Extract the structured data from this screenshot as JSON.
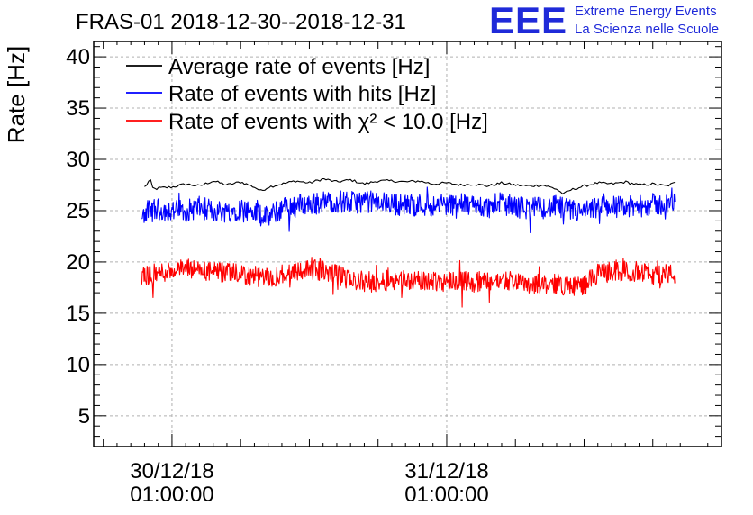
{
  "logo": {
    "mark": "EEE",
    "line1": "Extreme Energy Events",
    "line2": "La Scienza nelle Scuole",
    "color": "#1f2ad9"
  },
  "chart_data": {
    "type": "line",
    "title": "FRAS-01 2018-12-30--2018-12-31",
    "xlabel": "",
    "ylabel": "Rate [Hz]",
    "ylim": [
      2,
      41.5
    ],
    "xlim_hours": [
      -5.7,
      40.0
    ],
    "yticks": [
      5,
      10,
      15,
      20,
      25,
      30,
      35,
      40
    ],
    "grid": true,
    "x_tick_labels": [
      {
        "hours": 0,
        "date": "30/12/18",
        "time": "01:00:00"
      },
      {
        "hours": 20,
        "date": "31/12/18",
        "time": "01:00:00"
      }
    ],
    "legend_position": "top-left",
    "series": [
      {
        "name": "Average rate of events [Hz]",
        "color": "#000000",
        "data_hours": [
          -2.0,
          -1.8,
          -1.6,
          -1.4,
          -1.2,
          -1.0,
          0.0,
          1.0,
          2.0,
          3.0,
          4.0,
          5.0,
          6.0,
          6.5,
          7.0,
          8.0,
          9.0,
          10.0,
          11.0,
          12.0,
          13.0,
          14.0,
          15.0,
          16.0,
          17.0,
          18.0,
          19.0,
          20.0,
          21.0,
          22.0,
          23.0,
          24.0,
          25.0,
          26.0,
          27.0,
          28.0,
          28.5,
          29.0,
          30.0,
          31.0,
          32.0,
          33.0,
          34.0,
          35.0,
          36.0,
          36.6
        ],
        "values": [
          27.3,
          27.6,
          28.1,
          27.2,
          27.1,
          27.2,
          27.3,
          27.6,
          27.4,
          27.9,
          27.5,
          27.8,
          27.3,
          26.9,
          27.3,
          27.6,
          27.9,
          27.7,
          28.1,
          27.8,
          28.0,
          27.6,
          27.9,
          27.9,
          27.8,
          27.9,
          27.6,
          27.7,
          27.5,
          27.6,
          27.4,
          27.7,
          27.5,
          27.4,
          27.5,
          27.1,
          26.6,
          27.0,
          27.4,
          27.7,
          27.6,
          27.8,
          27.5,
          27.6,
          27.4,
          27.7
        ]
      },
      {
        "name": "Rate of events with hits [Hz]",
        "color": "#0000ff",
        "data_hours": [
          -2.2,
          -1.0,
          0.0,
          1.0,
          2.0,
          3.0,
          4.0,
          5.0,
          6.0,
          7.0,
          8.0,
          9.0,
          10.0,
          11.0,
          12.0,
          13.0,
          14.0,
          15.0,
          16.0,
          17.0,
          18.0,
          19.0,
          20.0,
          21.0,
          22.0,
          23.0,
          24.0,
          25.0,
          26.0,
          27.0,
          28.0,
          29.0,
          30.0,
          31.0,
          32.0,
          33.0,
          34.0,
          35.0,
          36.0,
          36.6
        ],
        "values": [
          24.8,
          25.1,
          25.0,
          25.0,
          25.3,
          25.0,
          24.9,
          25.2,
          24.8,
          24.3,
          25.2,
          25.6,
          25.6,
          25.8,
          25.9,
          25.8,
          25.9,
          25.8,
          25.7,
          25.5,
          25.6,
          25.5,
          25.6,
          25.6,
          25.5,
          25.3,
          25.7,
          25.4,
          25.2,
          25.3,
          25.4,
          25.0,
          24.8,
          25.3,
          25.5,
          25.3,
          25.4,
          25.6,
          25.6,
          25.7
        ],
        "noise_amplitude": 1.1
      },
      {
        "name": "Rate of events with χ² < 10.0 [Hz]",
        "color": "#ff0000",
        "data_hours": [
          -2.2,
          -1.0,
          0.0,
          1.0,
          2.0,
          3.0,
          4.0,
          5.0,
          6.0,
          7.0,
          8.0,
          9.0,
          10.0,
          11.0,
          12.0,
          13.0,
          14.0,
          15.0,
          16.0,
          17.0,
          18.0,
          19.0,
          20.0,
          21.0,
          22.0,
          23.0,
          24.0,
          25.0,
          26.0,
          27.0,
          28.0,
          29.0,
          30.0,
          31.0,
          32.0,
          33.0,
          34.0,
          35.0,
          36.0,
          36.6
        ],
        "values": [
          18.6,
          18.9,
          19.2,
          19.3,
          19.2,
          19.0,
          18.9,
          18.8,
          18.6,
          18.4,
          18.8,
          19.2,
          19.3,
          19.1,
          18.8,
          18.2,
          18.1,
          18.0,
          18.3,
          18.3,
          18.1,
          18.2,
          18.1,
          18.3,
          18.0,
          18.0,
          18.2,
          18.2,
          17.9,
          17.8,
          17.9,
          17.6,
          17.8,
          18.8,
          19.1,
          19.0,
          19.1,
          18.8,
          18.9,
          18.7
        ],
        "noise_amplitude": 1.0
      }
    ]
  }
}
